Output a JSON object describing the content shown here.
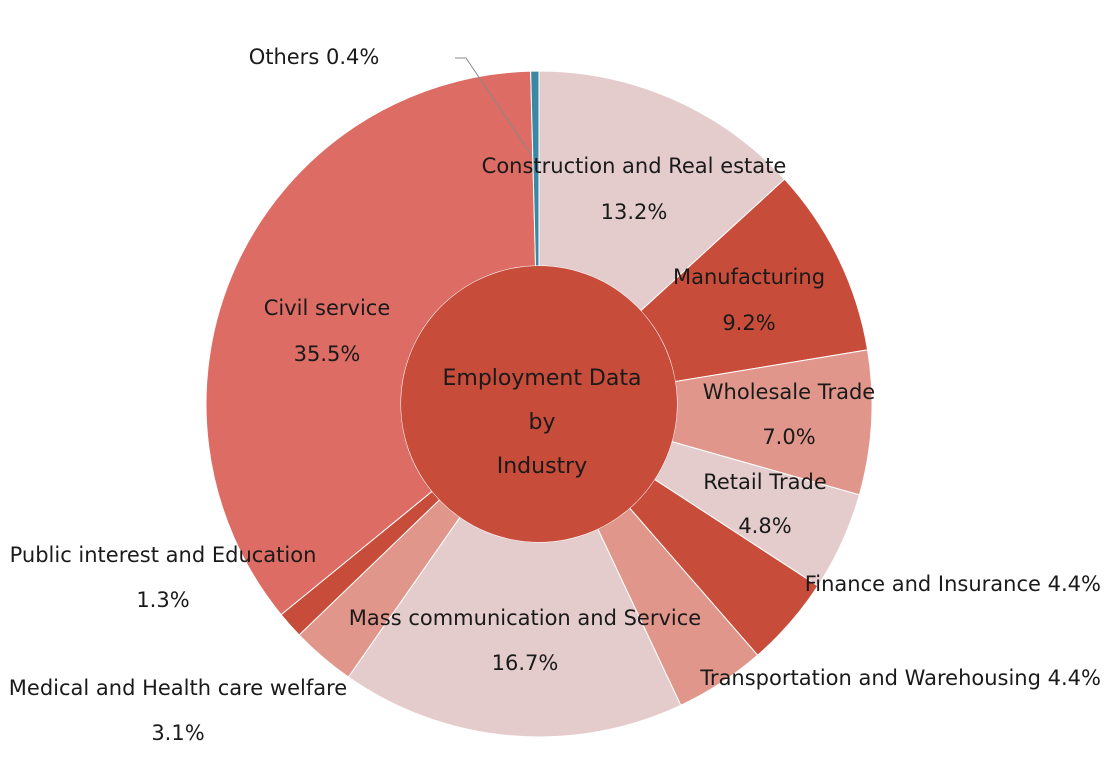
{
  "chart_data": {
    "type": "pie",
    "title": "Employment Data by Industry",
    "title_lines": [
      "Employment Data",
      "by",
      "Industry"
    ],
    "slices": [
      {
        "name": "Construction and Real estate",
        "value": 13.2,
        "value_label": "13.2%",
        "color": "#e4cccc"
      },
      {
        "name": "Manufacturing",
        "value": 9.2,
        "value_label": "9.2%",
        "color": "#c84c3a"
      },
      {
        "name": "Wholesale Trade",
        "value": 7.0,
        "value_label": "7.0%",
        "color": "#e0968a"
      },
      {
        "name": "Retail Trade",
        "value": 4.8,
        "value_label": "4.8%",
        "color": "#e4cccc"
      },
      {
        "name": "Finance and Insurance",
        "value": 4.4,
        "value_label": "4.4%",
        "color": "#c84c3a"
      },
      {
        "name": "Transportation and Warehousing",
        "value": 4.4,
        "value_label": "4.4%",
        "color": "#e0968a"
      },
      {
        "name": "Mass communication and Service",
        "value": 16.7,
        "value_label": "16.7%",
        "color": "#e4cccc"
      },
      {
        "name": "Medical and Health care welfare",
        "value": 3.1,
        "value_label": "3.1%",
        "color": "#e0968a"
      },
      {
        "name": "Public interest and Education",
        "value": 1.3,
        "value_label": "1.3%",
        "color": "#c84c3a"
      },
      {
        "name": "Civil service",
        "value": 35.5,
        "value_label": "35.5%",
        "color": "#dc6c64"
      },
      {
        "name": "Others",
        "value": 0.4,
        "value_label": "0.4%",
        "color": "#3a88a4"
      }
    ],
    "center_color": "#c84c3a",
    "start_angle_deg": 0,
    "direction": "clockwise"
  }
}
